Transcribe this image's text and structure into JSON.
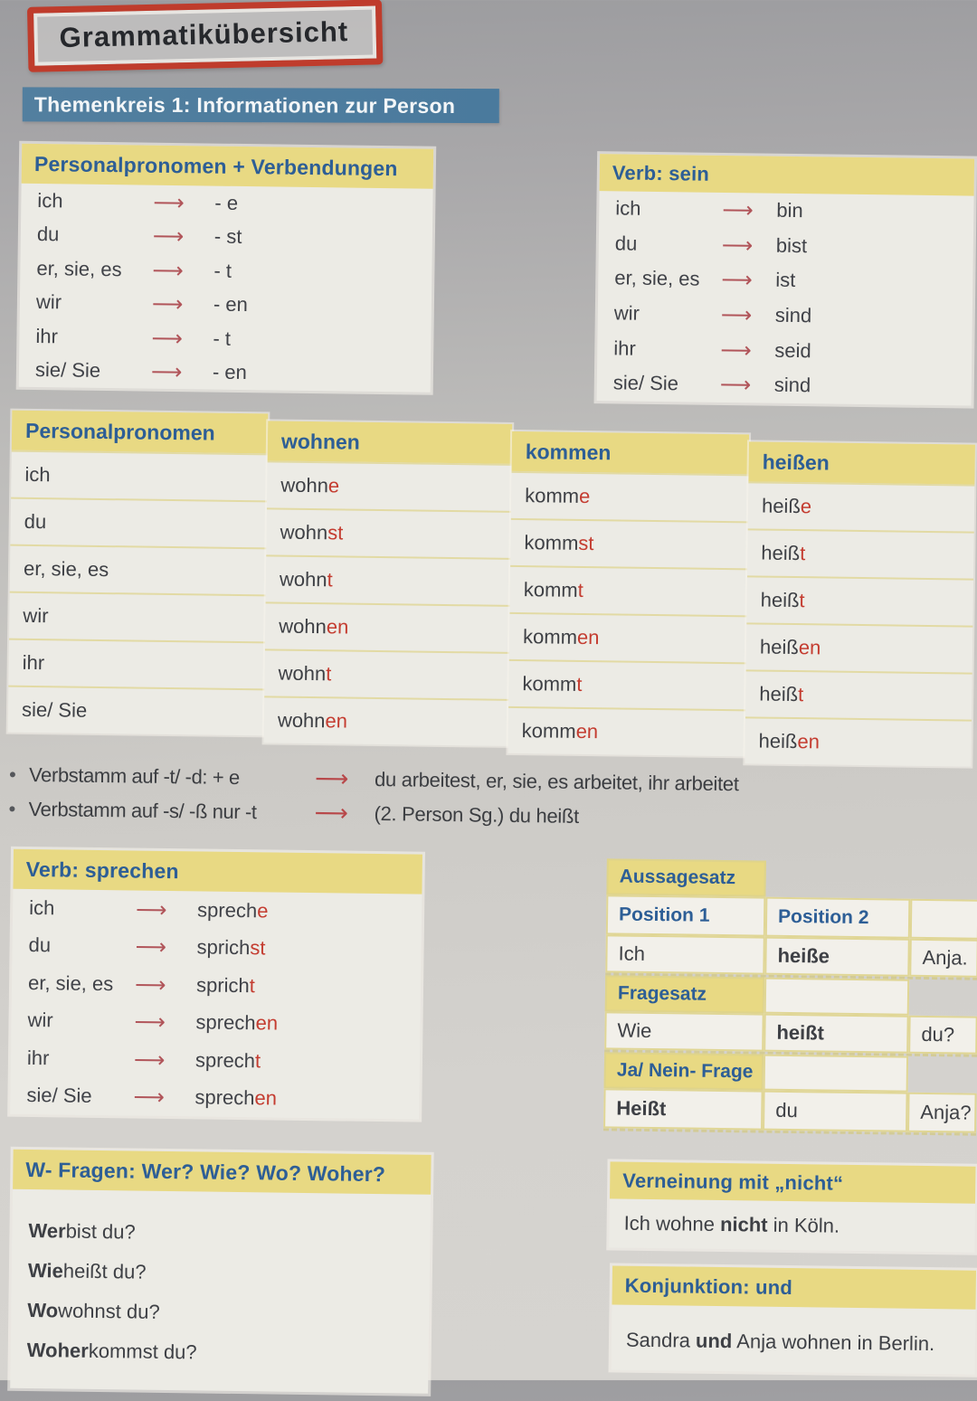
{
  "title_box": {
    "label": "Grammatikübersicht"
  },
  "banner": {
    "label": "Themenkreis 1: Informationen zur Person"
  },
  "endings_table": {
    "title": "Personalpronomen + Verbendungen",
    "rows": [
      [
        "ich",
        "- e"
      ],
      [
        "du",
        "- st"
      ],
      [
        "er, sie, es",
        "- t"
      ],
      [
        "wir",
        "- en"
      ],
      [
        "ihr",
        "- t"
      ],
      [
        "sie/ Sie",
        "- en"
      ]
    ]
  },
  "sein_table": {
    "title": "Verb: sein",
    "rows": [
      [
        "ich",
        "bin"
      ],
      [
        "du",
        "bist"
      ],
      [
        "er, sie, es",
        "ist"
      ],
      [
        "wir",
        "sind"
      ],
      [
        "ihr",
        "seid"
      ],
      [
        "sie/ Sie",
        "sind"
      ]
    ]
  },
  "conjugation_table": {
    "pronoun_header": "Personalpronomen",
    "pronouns": [
      "ich",
      "du",
      "er, sie, es",
      "wir",
      "ihr",
      "sie/ Sie"
    ],
    "verbs": [
      {
        "header": "wohnen",
        "forms": [
          [
            "wohn",
            "e"
          ],
          [
            "wohn",
            "st"
          ],
          [
            "wohn",
            "t"
          ],
          [
            "wohn",
            "en"
          ],
          [
            "wohn",
            "t"
          ],
          [
            "wohn",
            "en"
          ]
        ]
      },
      {
        "header": "kommen",
        "forms": [
          [
            "komm",
            "e"
          ],
          [
            "komm",
            "st"
          ],
          [
            "komm",
            "t"
          ],
          [
            "komm",
            "en"
          ],
          [
            "komm",
            "t"
          ],
          [
            "komm",
            "en"
          ]
        ]
      },
      {
        "header": "heißen",
        "forms": [
          [
            "heiß",
            "e"
          ],
          [
            "heiß",
            "t"
          ],
          [
            "heiß",
            "t"
          ],
          [
            "heiß",
            "en"
          ],
          [
            "heiß",
            "t"
          ],
          [
            "heiß",
            "en"
          ]
        ]
      }
    ]
  },
  "notes": [
    {
      "label": "Verbstamm auf -t/ -d: + e",
      "result": "du arbeitest, er, sie, es arbeitet, ihr arbeitet"
    },
    {
      "label": "Verbstamm auf -s/ -ß nur -t",
      "result": "(2. Person Sg.) du heißt"
    }
  ],
  "sprechen_table": {
    "title": "Verb: sprechen",
    "rows": [
      [
        "ich",
        "sprech",
        "e"
      ],
      [
        "du",
        "sprich",
        "st"
      ],
      [
        "er, sie, es",
        "sprich",
        "t"
      ],
      [
        "wir",
        "sprech",
        "en"
      ],
      [
        "ihr",
        "sprech",
        "t"
      ],
      [
        "sie/ Sie",
        "sprech",
        "en"
      ]
    ]
  },
  "sentence_block": {
    "rows": [
      {
        "cells": [
          {
            "kind": "header",
            "text": "Aussagesatz"
          },
          {
            "kind": "none"
          },
          {
            "kind": "none"
          }
        ]
      },
      {
        "cells": [
          {
            "kind": "subheader",
            "text": "Position 1"
          },
          {
            "kind": "subheader",
            "text": "Position 2"
          },
          {
            "kind": "empty"
          }
        ]
      },
      {
        "dashed": true,
        "cells": [
          {
            "kind": "text",
            "segs": [
              {
                "t": "Ich"
              }
            ]
          },
          {
            "kind": "text",
            "segs": [
              {
                "t": "heiße",
                "b": true
              }
            ]
          },
          {
            "kind": "text",
            "segs": [
              {
                "t": "Anja."
              }
            ]
          }
        ]
      },
      {
        "cells": [
          {
            "kind": "header",
            "text": "Fragesatz"
          },
          {
            "kind": "empty"
          },
          {
            "kind": "none"
          }
        ]
      },
      {
        "dashed": true,
        "cells": [
          {
            "kind": "text",
            "segs": [
              {
                "t": "Wie"
              }
            ]
          },
          {
            "kind": "text",
            "segs": [
              {
                "t": "heißt",
                "b": true
              }
            ]
          },
          {
            "kind": "text",
            "segs": [
              {
                "t": "du?"
              }
            ]
          }
        ]
      },
      {
        "cells": [
          {
            "kind": "header",
            "text": "Ja/ Nein- Frage"
          },
          {
            "kind": "empty"
          },
          {
            "kind": "none"
          }
        ]
      },
      {
        "dashed": true,
        "cells": [
          {
            "kind": "text",
            "segs": [
              {
                "t": "Heißt",
                "b": true
              }
            ]
          },
          {
            "kind": "text",
            "segs": [
              {
                "t": "du"
              }
            ]
          },
          {
            "kind": "text",
            "segs": [
              {
                "t": "Anja?"
              }
            ]
          }
        ]
      }
    ]
  },
  "w_fragen": {
    "title": "W- Fragen: Wer? Wie? Wo? Woher?",
    "lines": [
      [
        {
          "t": "Wer",
          "b": true
        },
        {
          "t": " bist du?"
        }
      ],
      [
        {
          "t": "Wie",
          "b": true
        },
        {
          "t": " heißt du?"
        }
      ],
      [
        {
          "t": "Wo",
          "b": true
        },
        {
          "t": " wohnst du?"
        }
      ],
      [
        {
          "t": "Woher",
          "b": true
        },
        {
          "t": " kommst du?"
        }
      ]
    ]
  },
  "verneinung": {
    "title": "Verneinung mit „nicht“",
    "line": [
      {
        "t": "Ich wohne "
      },
      {
        "t": "nicht",
        "b": true
      },
      {
        "t": " in Köln."
      }
    ]
  },
  "konjunktion": {
    "title": "Konjunktion: und",
    "line": [
      {
        "t": "Sandra "
      },
      {
        "t": "und",
        "b": true
      },
      {
        "t": " Anja wohnen in Berlin."
      }
    ]
  },
  "colors": {
    "header_yellow": "#e8d983",
    "header_blue_text": "#2d5e96",
    "banner_blue": "#4d7c9d",
    "frame_red": "#bf3c2c",
    "ending_red": "#c43c30",
    "arrow_red": "#b1555a",
    "body_text": "#3e4045",
    "panel_bg": "#ecebe5"
  }
}
